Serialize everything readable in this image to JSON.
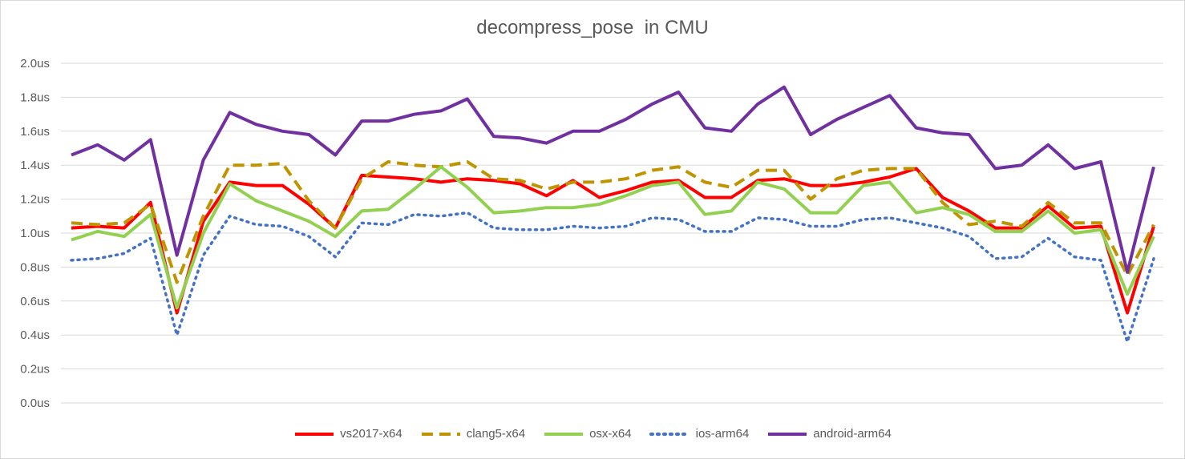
{
  "chart_data": {
    "type": "line",
    "title": "decompress_pose  in CMU",
    "xlabel": "",
    "ylabel": "",
    "ylim": [
      0,
      2.0
    ],
    "yticks": [
      "0.0us",
      "0.2us",
      "0.4us",
      "0.6us",
      "0.8us",
      "1.0us",
      "1.2us",
      "1.4us",
      "1.6us",
      "1.8us",
      "2.0us"
    ],
    "grid": true,
    "legend_position": "bottom",
    "series": [
      {
        "name": "vs2017-x64",
        "color": "#ff0000",
        "style": "solid",
        "values": [
          1.03,
          1.04,
          1.03,
          1.18,
          0.53,
          1.07,
          1.3,
          1.28,
          1.28,
          1.17,
          1.03,
          1.34,
          1.33,
          1.32,
          1.3,
          1.32,
          1.31,
          1.29,
          1.22,
          1.31,
          1.21,
          1.25,
          1.3,
          1.31,
          1.21,
          1.21,
          1.31,
          1.32,
          1.28,
          1.28,
          1.3,
          1.33,
          1.38,
          1.21,
          1.13,
          1.03,
          1.03,
          1.16,
          1.03,
          1.04,
          0.53,
          1.04
        ]
      },
      {
        "name": "clang5-x64",
        "color": "#c09400",
        "style": "dash",
        "values": [
          1.06,
          1.05,
          1.06,
          1.17,
          0.71,
          1.1,
          1.4,
          1.4,
          1.41,
          1.19,
          1.03,
          1.32,
          1.42,
          1.4,
          1.39,
          1.42,
          1.32,
          1.31,
          1.26,
          1.3,
          1.3,
          1.32,
          1.37,
          1.39,
          1.3,
          1.27,
          1.37,
          1.37,
          1.2,
          1.32,
          1.37,
          1.38,
          1.38,
          1.18,
          1.05,
          1.07,
          1.04,
          1.18,
          1.06,
          1.06,
          0.75,
          1.05
        ]
      },
      {
        "name": "osx-x64",
        "color": "#92d050",
        "style": "solid",
        "values": [
          0.96,
          1.01,
          0.98,
          1.11,
          0.56,
          1.0,
          1.29,
          1.19,
          1.13,
          1.07,
          0.98,
          1.13,
          1.14,
          1.26,
          1.39,
          1.27,
          1.12,
          1.13,
          1.15,
          1.15,
          1.17,
          1.22,
          1.28,
          1.3,
          1.11,
          1.13,
          1.3,
          1.26,
          1.12,
          1.12,
          1.28,
          1.3,
          1.12,
          1.15,
          1.11,
          1.01,
          1.01,
          1.13,
          1.0,
          1.02,
          0.64,
          0.98
        ]
      },
      {
        "name": "ios-arm64",
        "color": "#4472c4",
        "style": "dot",
        "values": [
          0.84,
          0.85,
          0.88,
          0.97,
          0.4,
          0.87,
          1.1,
          1.05,
          1.04,
          0.98,
          0.86,
          1.06,
          1.05,
          1.11,
          1.1,
          1.12,
          1.03,
          1.02,
          1.02,
          1.04,
          1.03,
          1.04,
          1.09,
          1.08,
          1.01,
          1.01,
          1.09,
          1.08,
          1.04,
          1.04,
          1.08,
          1.09,
          1.06,
          1.03,
          0.98,
          0.85,
          0.86,
          0.97,
          0.86,
          0.84,
          0.36,
          0.85
        ]
      },
      {
        "name": "android-arm64",
        "color": "#7030a0",
        "style": "solid",
        "values": [
          1.46,
          1.52,
          1.43,
          1.55,
          0.87,
          1.43,
          1.71,
          1.64,
          1.6,
          1.58,
          1.46,
          1.66,
          1.66,
          1.7,
          1.72,
          1.79,
          1.57,
          1.56,
          1.53,
          1.6,
          1.6,
          1.67,
          1.76,
          1.83,
          1.62,
          1.6,
          1.76,
          1.86,
          1.58,
          1.67,
          1.74,
          1.81,
          1.62,
          1.59,
          1.58,
          1.38,
          1.4,
          1.52,
          1.38,
          1.42,
          0.77,
          1.39
        ]
      }
    ]
  }
}
